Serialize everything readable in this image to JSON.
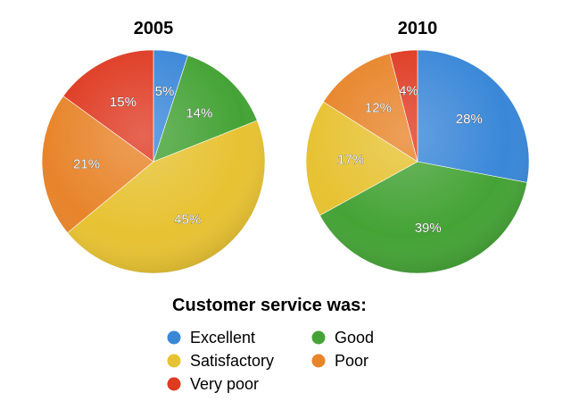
{
  "chart_data": [
    {
      "type": "pie",
      "title": "2005",
      "categories": [
        "Excellent",
        "Good",
        "Satisfactory",
        "Poor",
        "Very poor"
      ],
      "values": [
        5,
        14,
        45,
        21,
        15
      ],
      "labels": [
        "5%",
        "14%",
        "45%",
        "21%",
        "15%"
      ]
    },
    {
      "type": "pie",
      "title": "2010",
      "categories": [
        "Excellent",
        "Good",
        "Satisfactory",
        "Poor",
        "Very poor"
      ],
      "values": [
        28,
        39,
        17,
        12,
        4
      ],
      "labels": [
        "28%",
        "39%",
        "17%",
        "12%",
        "4%"
      ]
    }
  ],
  "legend": {
    "title": "Customer service was:",
    "placement": "bottom-center",
    "items": [
      {
        "label": "Excellent",
        "color": "#3a87d8"
      },
      {
        "label": "Good",
        "color": "#45a336"
      },
      {
        "label": "Satisfactory",
        "color": "#e7c232"
      },
      {
        "label": "Poor",
        "color": "#e8842a"
      },
      {
        "label": "Very poor",
        "color": "#df3a22"
      }
    ]
  }
}
